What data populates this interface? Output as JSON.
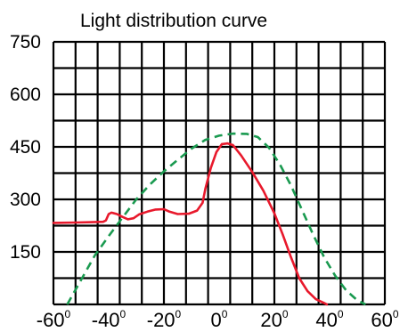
{
  "chart_data": {
    "type": "line",
    "title": "Light distribution curve",
    "xlabel": "",
    "ylabel": "",
    "xlim": [
      -60,
      60
    ],
    "ylim": [
      0,
      750
    ],
    "grid": true,
    "x_ticks": [
      {
        "value": -60,
        "label": "-60",
        "sup": "0"
      },
      {
        "value": -40,
        "label": "-40",
        "sup": "0"
      },
      {
        "value": -20,
        "label": "-20",
        "sup": "0"
      },
      {
        "value": 0,
        "label": "0",
        "sup": "0"
      },
      {
        "value": 20,
        "label": "20",
        "sup": "0"
      },
      {
        "value": 40,
        "label": "40",
        "sup": "0"
      },
      {
        "value": 60,
        "label": "60",
        "sup": "0"
      }
    ],
    "y_ticks": [
      {
        "value": 150,
        "label": "150"
      },
      {
        "value": 300,
        "label": "300"
      },
      {
        "value": 450,
        "label": "450"
      },
      {
        "value": 600,
        "label": "600"
      },
      {
        "value": 750,
        "label": "750"
      }
    ],
    "series": [
      {
        "color": "#e8192c",
        "style": "solid",
        "points": [
          [
            -60,
            233
          ],
          [
            -52,
            234
          ],
          [
            -46,
            235
          ],
          [
            -42,
            236
          ],
          [
            -41,
            240
          ],
          [
            -40,
            258
          ],
          [
            -39,
            262
          ],
          [
            -37,
            258
          ],
          [
            -35,
            250
          ],
          [
            -33,
            243
          ],
          [
            -31,
            246
          ],
          [
            -29,
            257
          ],
          [
            -26,
            265
          ],
          [
            -23,
            271
          ],
          [
            -20,
            272
          ],
          [
            -18,
            265
          ],
          [
            -15,
            258
          ],
          [
            -11,
            259
          ],
          [
            -8,
            268
          ],
          [
            -6,
            290
          ],
          [
            -5,
            330
          ],
          [
            -3,
            390
          ],
          [
            -1,
            435
          ],
          [
            1,
            458
          ],
          [
            3,
            460
          ],
          [
            5,
            455
          ],
          [
            8,
            425
          ],
          [
            12,
            378
          ],
          [
            16,
            325
          ],
          [
            20,
            260
          ],
          [
            23,
            200
          ],
          [
            26,
            135
          ],
          [
            29,
            75
          ],
          [
            32,
            38
          ],
          [
            35,
            15
          ],
          [
            38,
            4
          ],
          [
            39,
            0
          ]
        ]
      },
      {
        "color": "#1a9a50",
        "style": "dashed",
        "points": [
          [
            -55,
            0
          ],
          [
            -50,
            70
          ],
          [
            -45,
            140
          ],
          [
            -40,
            195
          ],
          [
            -35,
            248
          ],
          [
            -30,
            300
          ],
          [
            -25,
            343
          ],
          [
            -20,
            380
          ],
          [
            -15,
            413
          ],
          [
            -10,
            445
          ],
          [
            -5,
            470
          ],
          [
            0,
            482
          ],
          [
            5,
            488
          ],
          [
            10,
            487
          ],
          [
            14,
            478
          ],
          [
            18,
            448
          ],
          [
            22,
            400
          ],
          [
            26,
            340
          ],
          [
            30,
            270
          ],
          [
            34,
            200
          ],
          [
            38,
            135
          ],
          [
            42,
            82
          ],
          [
            46,
            40
          ],
          [
            50,
            12
          ],
          [
            53,
            0
          ]
        ]
      }
    ]
  }
}
